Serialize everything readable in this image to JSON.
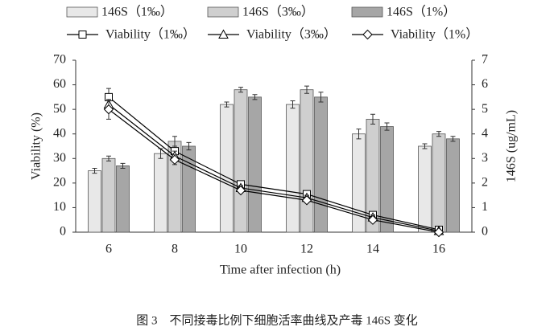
{
  "chart_data": {
    "type": "combo",
    "caption": "图 3　不同接毒比例下细胞活率曲线及产毒 146S 变化",
    "x_label": "Time after infection (h)",
    "y_label": "Viability (%)",
    "y2_label": "146S (ug/mL)",
    "categories": [
      "6",
      "8",
      "10",
      "12",
      "14",
      "16"
    ],
    "ylim": [
      0,
      70
    ],
    "yticks": [
      0,
      10,
      20,
      30,
      40,
      50,
      60,
      70
    ],
    "y2lim": [
      0,
      7
    ],
    "y2ticks": [
      0,
      1,
      2,
      3,
      4,
      5,
      6,
      7
    ],
    "series": [
      {
        "name": "146S（1‰）",
        "type": "bar",
        "axis": "y2",
        "color": "#e8e8e8",
        "values": [
          2.5,
          3.2,
          5.2,
          5.2,
          4.0,
          3.5
        ],
        "errors": [
          0.1,
          0.2,
          0.1,
          0.15,
          0.2,
          0.1
        ]
      },
      {
        "name": "146S（3‰）",
        "type": "bar",
        "axis": "y2",
        "color": "#cfcfcf",
        "values": [
          3.0,
          3.7,
          5.8,
          5.8,
          4.6,
          4.0
        ],
        "errors": [
          0.1,
          0.2,
          0.1,
          0.15,
          0.2,
          0.1
        ]
      },
      {
        "name": "146S（1%）",
        "type": "bar",
        "axis": "y2",
        "color": "#a6a6a6",
        "values": [
          2.7,
          3.5,
          5.5,
          5.5,
          4.3,
          3.8
        ],
        "errors": [
          0.1,
          0.15,
          0.1,
          0.2,
          0.15,
          0.1
        ]
      },
      {
        "name": "Viability（1‰）",
        "type": "line",
        "marker": "square",
        "color": "#000000",
        "values": [
          55,
          33,
          19.5,
          15.5,
          7,
          1
        ],
        "errors": [
          3.5,
          2,
          1,
          1,
          1,
          1
        ]
      },
      {
        "name": "Viability（3‰）",
        "type": "line",
        "marker": "triangle",
        "color": "#000000",
        "values": [
          52,
          31,
          18,
          14,
          6,
          0.5
        ],
        "errors": [
          2,
          2,
          1,
          1,
          1,
          0.5
        ]
      },
      {
        "name": "Viability（1%）",
        "type": "line",
        "marker": "diamond",
        "color": "#000000",
        "values": [
          50,
          29.5,
          17,
          13,
          5,
          0
        ],
        "errors": [
          4,
          2,
          1,
          1,
          1,
          0.5
        ]
      }
    ]
  }
}
